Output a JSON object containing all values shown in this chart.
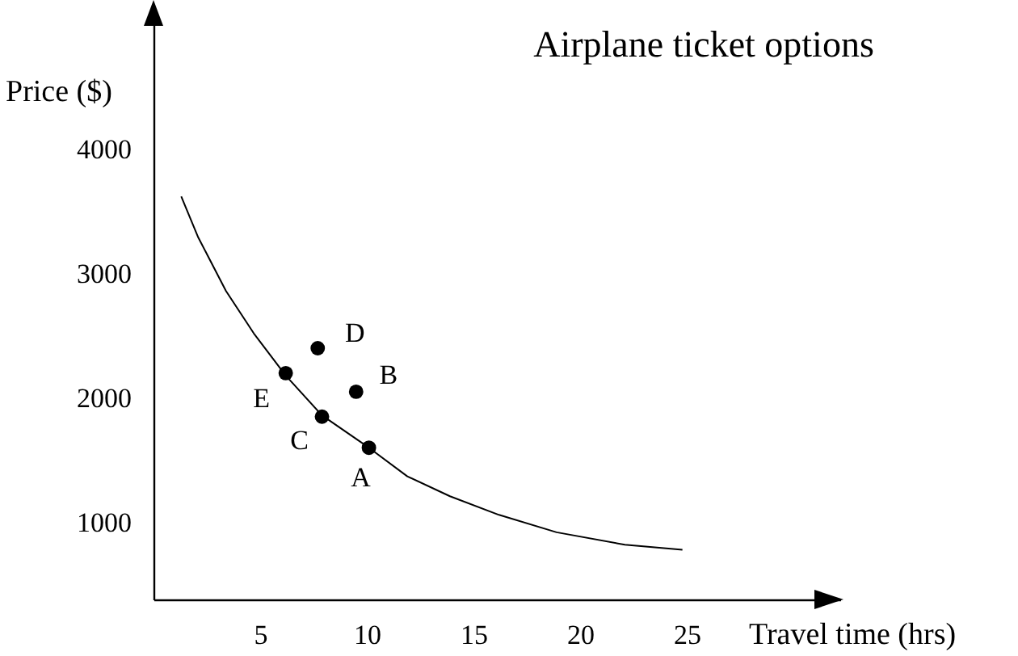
{
  "chart_data": {
    "type": "scatter",
    "title": "Airplane ticket options",
    "xlabel": "Travel time (hrs)",
    "ylabel": "Price ($)",
    "xlim": [
      0,
      32.2
    ],
    "ylim": [
      380,
      5070
    ],
    "xticks": [
      5,
      10,
      15,
      20,
      25
    ],
    "yticks": [
      1000,
      2000,
      3000,
      4000
    ],
    "grid": false,
    "series": [
      {
        "type": "line",
        "marker": "none",
        "color": "#000000",
        "x": [
          1.3,
          2.1,
          3.4,
          4.7,
          6.2,
          7.9,
          10.1,
          11.9,
          13.9,
          16.2,
          18.9,
          22.1,
          24.8
        ],
        "values": [
          3620,
          3290,
          2860,
          2520,
          2180,
          1860,
          1600,
          1370,
          1210,
          1060,
          920,
          820,
          780
        ]
      },
      {
        "marker": "circle",
        "color": "#000000",
        "x": [
          10.1,
          9.5,
          7.9,
          7.7,
          6.2
        ],
        "values": [
          1600,
          2050,
          1850,
          2400,
          2200
        ]
      }
    ],
    "annotations": [
      {
        "text": "A",
        "x": 10.1,
        "y": 1600
      },
      {
        "text": "B",
        "x": 9.5,
        "y": 2050
      },
      {
        "text": "C",
        "x": 7.9,
        "y": 1850
      },
      {
        "text": "D",
        "x": 7.7,
        "y": 2400
      },
      {
        "text": "E",
        "x": 6.2,
        "y": 2200
      }
    ]
  }
}
